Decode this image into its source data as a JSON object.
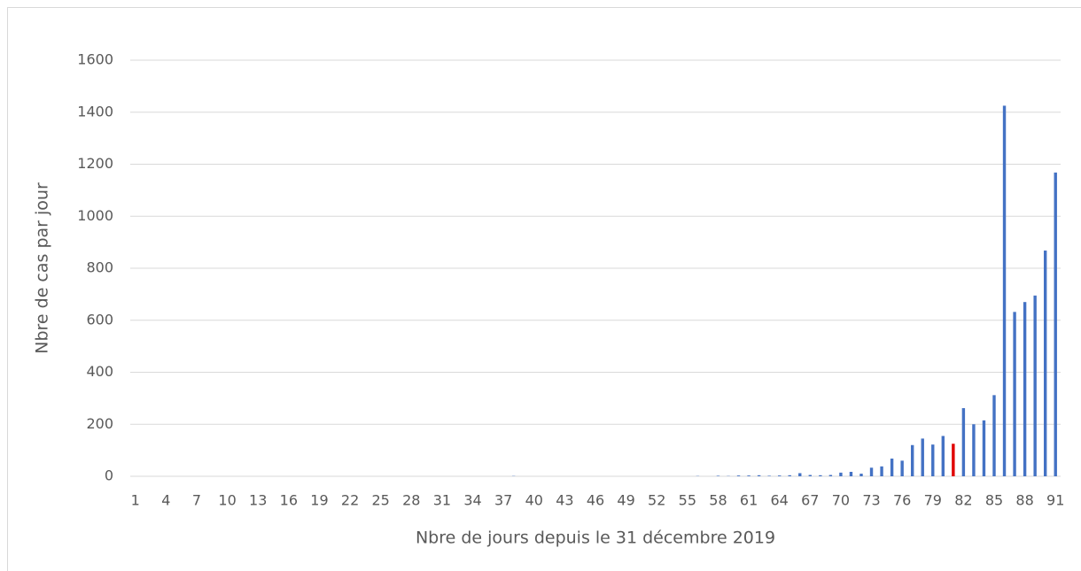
{
  "chart_data": {
    "type": "bar",
    "x_label": "Nbre de jours depuis le 31 décembre 2019",
    "y_label": "Nbre de cas par jour",
    "categories": [
      1,
      null,
      null,
      4,
      null,
      null,
      7,
      null,
      null,
      10,
      null,
      null,
      13,
      null,
      null,
      16,
      null,
      null,
      19,
      null,
      null,
      22,
      null,
      null,
      25,
      null,
      null,
      28,
      null,
      null,
      31,
      null,
      null,
      34,
      null,
      null,
      37,
      null,
      null,
      40,
      null,
      null,
      43,
      null,
      null,
      46,
      null,
      null,
      49,
      null,
      null,
      52,
      null,
      null,
      55,
      null,
      null,
      58,
      null,
      null,
      61,
      null,
      null,
      64,
      null,
      null,
      67,
      null,
      null,
      70,
      null,
      null,
      73,
      null,
      null,
      76,
      null,
      null,
      79,
      null,
      null,
      82,
      null,
      null,
      85,
      null,
      null,
      88,
      null,
      null,
      91
    ],
    "values": [
      0,
      0,
      0,
      0,
      0,
      0,
      0,
      0,
      0,
      0,
      0,
      0,
      0,
      0,
      0,
      0,
      0,
      0,
      0,
      0,
      0,
      0,
      0,
      0,
      0,
      0,
      0,
      0,
      0,
      0,
      0,
      0,
      0,
      0,
      0,
      0,
      0,
      1,
      0,
      0,
      0,
      0,
      0,
      0,
      0,
      0,
      0,
      0,
      0,
      0,
      0,
      0,
      0,
      0,
      0,
      1,
      0,
      2,
      1,
      3,
      3,
      4,
      2,
      3,
      4,
      12,
      5,
      4,
      5,
      14,
      17,
      10,
      33,
      38,
      68,
      60,
      120,
      145,
      122,
      155,
      125,
      262,
      200,
      215,
      312,
      1425,
      632,
      670,
      695,
      868,
      1168
    ],
    "colors": [
      "#4472c4",
      "#4472c4",
      "#4472c4",
      "#4472c4",
      "#4472c4",
      "#4472c4",
      "#4472c4",
      "#4472c4",
      "#4472c4",
      "#4472c4",
      "#4472c4",
      "#4472c4",
      "#4472c4",
      "#4472c4",
      "#4472c4",
      "#4472c4",
      "#4472c4",
      "#4472c4",
      "#4472c4",
      "#4472c4",
      "#4472c4",
      "#4472c4",
      "#4472c4",
      "#4472c4",
      "#4472c4",
      "#4472c4",
      "#4472c4",
      "#4472c4",
      "#4472c4",
      "#4472c4",
      "#4472c4",
      "#4472c4",
      "#4472c4",
      "#4472c4",
      "#4472c4",
      "#4472c4",
      "#4472c4",
      "#4472c4",
      "#4472c4",
      "#4472c4",
      "#4472c4",
      "#4472c4",
      "#4472c4",
      "#4472c4",
      "#4472c4",
      "#4472c4",
      "#4472c4",
      "#4472c4",
      "#4472c4",
      "#4472c4",
      "#4472c4",
      "#4472c4",
      "#4472c4",
      "#4472c4",
      "#4472c4",
      "#4472c4",
      "#4472c4",
      "#4472c4",
      "#4472c4",
      "#4472c4",
      "#4472c4",
      "#4472c4",
      "#4472c4",
      "#4472c4",
      "#4472c4",
      "#4472c4",
      "#4472c4",
      "#4472c4",
      "#4472c4",
      "#4472c4",
      "#4472c4",
      "#4472c4",
      "#4472c4",
      "#4472c4",
      "#4472c4",
      "#4472c4",
      "#4472c4",
      "#4472c4",
      "#4472c4",
      "#4472c4",
      "#e00000",
      "#4472c4",
      "#4472c4",
      "#4472c4",
      "#4472c4",
      "#4472c4",
      "#4472c4",
      "#4472c4",
      "#4472c4",
      "#4472c4",
      "#4472c4"
    ],
    "ylim": [
      0,
      1600
    ],
    "yticks": [
      0,
      200,
      400,
      600,
      800,
      1000,
      1200,
      1400,
      1600
    ],
    "grid": true
  }
}
